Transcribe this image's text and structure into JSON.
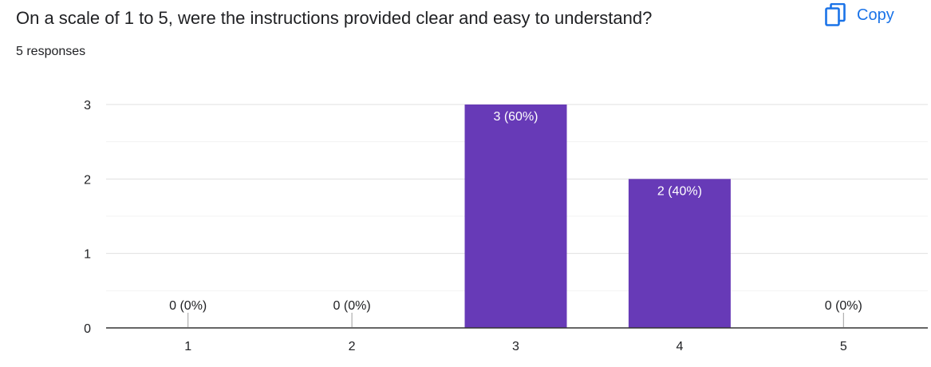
{
  "header": {
    "question": "On a scale of 1 to 5, were the instructions provided clear and easy to understand?",
    "responses": "5 responses",
    "copy_label": "Copy",
    "copy_icon": "copy-icon"
  },
  "colors": {
    "bar": "#673ab7",
    "accent": "#1a73e8"
  },
  "chart_data": {
    "type": "bar",
    "categories": [
      "1",
      "2",
      "3",
      "4",
      "5"
    ],
    "values": [
      0,
      0,
      3,
      2,
      0
    ],
    "data_labels": [
      "0 (0%)",
      "0 (0%)",
      "3 (60%)",
      "2 (40%)",
      "0 (0%)"
    ],
    "yticks": [
      0,
      1,
      2,
      3
    ],
    "ylim": [
      0,
      3
    ],
    "grid": true,
    "title": "",
    "xlabel": "",
    "ylabel": ""
  }
}
